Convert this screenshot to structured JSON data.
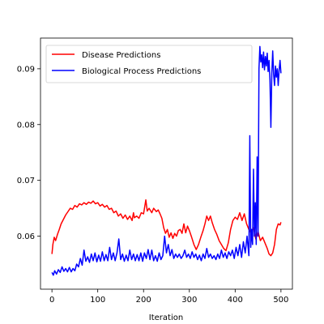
{
  "chart_data": {
    "type": "line",
    "title": "",
    "xlabel": "Iteration",
    "ylabel": "",
    "xlim": [
      -25,
      525
    ],
    "ylim": [
      0.0505,
      0.0955
    ],
    "xticks": [
      0,
      100,
      200,
      300,
      400,
      500
    ],
    "yticks": [
      0.06,
      0.07,
      0.08,
      0.09
    ],
    "xtick_labels": [
      "0",
      "100",
      "200",
      "300",
      "400",
      "500"
    ],
    "ytick_labels": [
      "0.06",
      "0.07",
      "0.08",
      "0.09"
    ],
    "grid": false,
    "legend_placement": "top-left",
    "series": [
      {
        "name": "Disease Predictions",
        "color": "#ff0000",
        "points": [
          [
            0,
            0.0568
          ],
          [
            2,
            0.0585
          ],
          [
            5,
            0.0598
          ],
          [
            8,
            0.0592
          ],
          [
            12,
            0.0603
          ],
          [
            16,
            0.0612
          ],
          [
            20,
            0.0622
          ],
          [
            25,
            0.063
          ],
          [
            30,
            0.0638
          ],
          [
            35,
            0.0644
          ],
          [
            40,
            0.065
          ],
          [
            45,
            0.0648
          ],
          [
            50,
            0.0655
          ],
          [
            55,
            0.0652
          ],
          [
            60,
            0.0658
          ],
          [
            65,
            0.0656
          ],
          [
            70,
            0.066
          ],
          [
            75,
            0.0657
          ],
          [
            80,
            0.0661
          ],
          [
            85,
            0.0659
          ],
          [
            90,
            0.0663
          ],
          [
            95,
            0.0658
          ],
          [
            100,
            0.066
          ],
          [
            105,
            0.0654
          ],
          [
            110,
            0.0657
          ],
          [
            115,
            0.0652
          ],
          [
            120,
            0.0655
          ],
          [
            125,
            0.0648
          ],
          [
            130,
            0.065
          ],
          [
            135,
            0.0642
          ],
          [
            140,
            0.0645
          ],
          [
            145,
            0.0636
          ],
          [
            150,
            0.064
          ],
          [
            155,
            0.0632
          ],
          [
            160,
            0.0638
          ],
          [
            165,
            0.063
          ],
          [
            170,
            0.0636
          ],
          [
            175,
            0.0628
          ],
          [
            178,
            0.0642
          ],
          [
            180,
            0.0633
          ],
          [
            185,
            0.0636
          ],
          [
            190,
            0.0632
          ],
          [
            195,
            0.0642
          ],
          [
            200,
            0.064
          ],
          [
            205,
            0.0665
          ],
          [
            208,
            0.0645
          ],
          [
            212,
            0.065
          ],
          [
            218,
            0.0642
          ],
          [
            222,
            0.065
          ],
          [
            228,
            0.0644
          ],
          [
            232,
            0.0647
          ],
          [
            236,
            0.064
          ],
          [
            240,
            0.0632
          ],
          [
            244,
            0.0615
          ],
          [
            248,
            0.0605
          ],
          [
            252,
            0.0612
          ],
          [
            256,
            0.0598
          ],
          [
            260,
            0.0606
          ],
          [
            264,
            0.0596
          ],
          [
            268,
            0.0605
          ],
          [
            272,
            0.06
          ],
          [
            276,
            0.061
          ],
          [
            280,
            0.0612
          ],
          [
            284,
            0.0605
          ],
          [
            288,
            0.0622
          ],
          [
            292,
            0.0606
          ],
          [
            296,
            0.0618
          ],
          [
            300,
            0.061
          ],
          [
            305,
            0.0598
          ],
          [
            310,
            0.0585
          ],
          [
            315,
            0.0576
          ],
          [
            320,
            0.0585
          ],
          [
            325,
            0.0598
          ],
          [
            330,
            0.061
          ],
          [
            334,
            0.0622
          ],
          [
            338,
            0.0636
          ],
          [
            342,
            0.0628
          ],
          [
            346,
            0.0636
          ],
          [
            350,
            0.0624
          ],
          [
            355,
            0.0612
          ],
          [
            360,
            0.0603
          ],
          [
            365,
            0.0592
          ],
          [
            370,
            0.0585
          ],
          [
            375,
            0.0578
          ],
          [
            380,
            0.0574
          ],
          [
            385,
            0.0588
          ],
          [
            390,
            0.0612
          ],
          [
            395,
            0.0628
          ],
          [
            400,
            0.0634
          ],
          [
            405,
            0.063
          ],
          [
            410,
            0.0642
          ],
          [
            415,
            0.0628
          ],
          [
            420,
            0.064
          ],
          [
            425,
            0.0622
          ],
          [
            430,
            0.0612
          ],
          [
            435,
            0.0605
          ],
          [
            440,
            0.0615
          ],
          [
            445,
            0.0595
          ],
          [
            450,
            0.0608
          ],
          [
            455,
            0.0592
          ],
          [
            460,
            0.0598
          ],
          [
            465,
            0.0588
          ],
          [
            470,
            0.0578
          ],
          [
            474,
            0.0568
          ],
          [
            478,
            0.0565
          ],
          [
            482,
            0.057
          ],
          [
            486,
            0.0585
          ],
          [
            490,
            0.0612
          ],
          [
            494,
            0.0622
          ],
          [
            498,
            0.062
          ],
          [
            500,
            0.0625
          ]
        ]
      },
      {
        "name": "Biological Process Predictions",
        "color": "#0000ff",
        "points": [
          [
            0,
            0.0535
          ],
          [
            3,
            0.053
          ],
          [
            6,
            0.0538
          ],
          [
            10,
            0.0532
          ],
          [
            14,
            0.054
          ],
          [
            18,
            0.0535
          ],
          [
            22,
            0.0545
          ],
          [
            26,
            0.0537
          ],
          [
            30,
            0.0542
          ],
          [
            34,
            0.0536
          ],
          [
            38,
            0.0544
          ],
          [
            42,
            0.0536
          ],
          [
            46,
            0.0542
          ],
          [
            50,
            0.0538
          ],
          [
            54,
            0.055
          ],
          [
            58,
            0.0545
          ],
          [
            62,
            0.056
          ],
          [
            66,
            0.0548
          ],
          [
            70,
            0.0575
          ],
          [
            74,
            0.0555
          ],
          [
            78,
            0.0563
          ],
          [
            82,
            0.0553
          ],
          [
            86,
            0.0568
          ],
          [
            90,
            0.0556
          ],
          [
            94,
            0.057
          ],
          [
            98,
            0.0554
          ],
          [
            102,
            0.0566
          ],
          [
            106,
            0.0555
          ],
          [
            110,
            0.0572
          ],
          [
            114,
            0.0556
          ],
          [
            118,
            0.0567
          ],
          [
            122,
            0.0556
          ],
          [
            126,
            0.058
          ],
          [
            130,
            0.0558
          ],
          [
            134,
            0.057
          ],
          [
            138,
            0.0556
          ],
          [
            142,
            0.057
          ],
          [
            146,
            0.0595
          ],
          [
            150,
            0.0558
          ],
          [
            154,
            0.0568
          ],
          [
            158,
            0.0555
          ],
          [
            162,
            0.0566
          ],
          [
            166,
            0.0556
          ],
          [
            170,
            0.0575
          ],
          [
            174,
            0.0558
          ],
          [
            178,
            0.0568
          ],
          [
            182,
            0.0556
          ],
          [
            186,
            0.0567
          ],
          [
            190,
            0.0556
          ],
          [
            194,
            0.057
          ],
          [
            198,
            0.0555
          ],
          [
            202,
            0.057
          ],
          [
            206,
            0.056
          ],
          [
            210,
            0.0576
          ],
          [
            214,
            0.0558
          ],
          [
            218,
            0.0575
          ],
          [
            222,
            0.0556
          ],
          [
            226,
            0.0565
          ],
          [
            230,
            0.0555
          ],
          [
            234,
            0.057
          ],
          [
            238,
            0.0558
          ],
          [
            242,
            0.0565
          ],
          [
            246,
            0.06
          ],
          [
            250,
            0.057
          ],
          [
            254,
            0.0585
          ],
          [
            258,
            0.0565
          ],
          [
            262,
            0.0576
          ],
          [
            266,
            0.056
          ],
          [
            270,
            0.0568
          ],
          [
            274,
            0.0562
          ],
          [
            278,
            0.0568
          ],
          [
            282,
            0.056
          ],
          [
            286,
            0.0565
          ],
          [
            290,
            0.0575
          ],
          [
            294,
            0.0562
          ],
          [
            298,
            0.0568
          ],
          [
            302,
            0.056
          ],
          [
            306,
            0.0572
          ],
          [
            310,
            0.0562
          ],
          [
            314,
            0.0568
          ],
          [
            318,
            0.0558
          ],
          [
            322,
            0.0566
          ],
          [
            326,
            0.0556
          ],
          [
            330,
            0.0568
          ],
          [
            334,
            0.056
          ],
          [
            338,
            0.0578
          ],
          [
            342,
            0.0562
          ],
          [
            346,
            0.0568
          ],
          [
            350,
            0.056
          ],
          [
            354,
            0.0565
          ],
          [
            358,
            0.0558
          ],
          [
            362,
            0.0568
          ],
          [
            366,
            0.056
          ],
          [
            370,
            0.0575
          ],
          [
            374,
            0.0562
          ],
          [
            378,
            0.057
          ],
          [
            382,
            0.056
          ],
          [
            386,
            0.0572
          ],
          [
            390,
            0.0565
          ],
          [
            394,
            0.0575
          ],
          [
            398,
            0.056
          ],
          [
            402,
            0.058
          ],
          [
            406,
            0.0565
          ],
          [
            410,
            0.0585
          ],
          [
            414,
            0.0562
          ],
          [
            418,
            0.059
          ],
          [
            422,
            0.057
          ],
          [
            426,
            0.06
          ],
          [
            430,
            0.0565
          ],
          [
            432,
            0.078
          ],
          [
            434,
            0.058
          ],
          [
            436,
            0.0612
          ],
          [
            438,
            0.0585
          ],
          [
            440,
            0.072
          ],
          [
            442,
            0.06
          ],
          [
            444,
            0.066
          ],
          [
            446,
            0.0585
          ],
          [
            448,
            0.0742
          ],
          [
            450,
            0.06
          ],
          [
            452,
            0.09
          ],
          [
            454,
            0.094
          ],
          [
            456,
            0.0912
          ],
          [
            458,
            0.0925
          ],
          [
            460,
            0.0902
          ],
          [
            462,
            0.093
          ],
          [
            464,
            0.0898
          ],
          [
            466,
            0.0922
          ],
          [
            468,
            0.0905
          ],
          [
            470,
            0.0928
          ],
          [
            472,
            0.0895
          ],
          [
            474,
            0.0915
          ],
          [
            476,
            0.088
          ],
          [
            478,
            0.0795
          ],
          [
            480,
            0.089
          ],
          [
            482,
            0.0932
          ],
          [
            484,
            0.089
          ],
          [
            486,
            0.087
          ],
          [
            488,
            0.0905
          ],
          [
            490,
            0.0885
          ],
          [
            492,
            0.09
          ],
          [
            494,
            0.087
          ],
          [
            496,
            0.0898
          ],
          [
            498,
            0.0915
          ],
          [
            500,
            0.0892
          ]
        ]
      }
    ]
  }
}
